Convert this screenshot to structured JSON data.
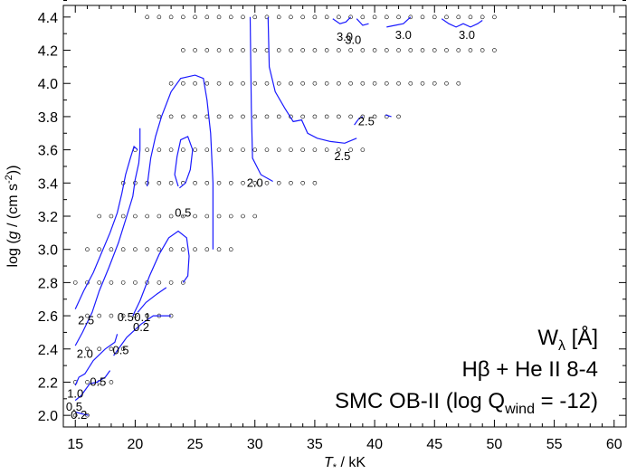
{
  "chart_data": {
    "type": "scatter",
    "xlabel_main": "T",
    "xlabel_sub": "*",
    "xlabel_unit": " / kK",
    "ylabel_pre": "log (",
    "ylabel_g": "g",
    "ylabel_post": " / (cm s",
    "ylabel_sup": "-2",
    "ylabel_end": "))",
    "xlim": [
      14,
      61
    ],
    "ylim": [
      1.93,
      4.47
    ],
    "xticks": [
      15,
      20,
      25,
      30,
      35,
      40,
      45,
      50,
      55,
      60
    ],
    "yticks": [
      2.0,
      2.2,
      2.4,
      2.6,
      2.8,
      3.0,
      3.2,
      3.4,
      3.6,
      3.8,
      4.0,
      4.2,
      4.4
    ],
    "ytick_labels": [
      "2.0",
      "2.2",
      "2.4",
      "2.6",
      "2.8",
      "3.0",
      "3.2",
      "3.4",
      "3.6",
      "3.8",
      "4.0",
      "4.2",
      "4.4"
    ],
    "annotation": {
      "line1_main": "W",
      "line1_sub": "λ",
      "line1_unit": " [Å]",
      "line2": "Hβ + He II 8-4",
      "line3_pre": "SMC OB-II (log Q",
      "line3_sub": "wind",
      "line3_post": " = -12)"
    },
    "grid_rows": [
      {
        "logg": 4.4,
        "x": [
          21,
          22,
          23,
          24,
          25,
          26,
          27,
          28,
          29,
          30,
          31,
          32,
          33,
          34,
          35,
          36,
          37,
          38,
          39,
          40,
          41,
          42,
          43,
          44,
          45,
          46,
          47,
          48,
          49,
          50
        ]
      },
      {
        "logg": 4.2,
        "x": [
          24,
          25,
          26,
          27,
          28,
          29,
          30,
          31,
          32,
          33,
          34,
          35,
          36,
          37,
          38,
          39,
          40,
          41,
          42,
          43,
          44,
          45,
          46,
          47,
          48,
          49,
          50
        ]
      },
      {
        "logg": 4.0,
        "x": [
          23,
          24,
          25,
          26,
          27,
          28,
          29,
          30,
          31,
          32,
          33,
          34,
          35,
          36,
          37,
          38,
          39,
          40,
          41,
          42,
          43,
          44,
          45,
          46,
          47
        ]
      },
      {
        "logg": 3.8,
        "x": [
          22,
          23,
          24,
          25,
          26,
          27,
          28,
          29,
          30,
          31,
          32,
          33,
          34,
          35,
          36,
          37,
          38,
          39,
          40,
          41,
          42
        ]
      },
      {
        "logg": 3.6,
        "x": [
          20,
          21,
          22,
          23,
          24,
          25,
          26,
          27,
          28,
          29,
          30,
          31,
          32,
          33,
          34,
          35,
          36,
          37,
          38,
          39
        ]
      },
      {
        "logg": 3.4,
        "x": [
          19,
          20,
          21,
          22,
          23,
          24,
          25,
          26,
          27,
          28,
          29,
          30,
          31,
          32,
          33,
          34,
          35
        ]
      },
      {
        "logg": 3.2,
        "x": [
          17,
          18,
          19,
          20,
          21,
          22,
          23,
          24,
          25,
          26,
          27,
          28,
          29,
          30
        ]
      },
      {
        "logg": 3.0,
        "x": [
          16,
          17,
          18,
          19,
          20,
          21,
          22,
          23,
          24,
          25,
          26,
          27,
          28
        ]
      },
      {
        "logg": 2.8,
        "x": [
          15,
          16,
          17,
          18,
          19,
          20,
          21,
          22,
          23,
          24
        ]
      },
      {
        "logg": 2.6,
        "x": [
          16,
          17,
          18,
          19,
          20,
          21,
          22,
          23
        ]
      },
      {
        "logg": 2.4,
        "x": [
          16,
          17,
          18,
          19
        ]
      },
      {
        "logg": 2.2,
        "x": [
          15,
          16,
          17,
          18
        ]
      },
      {
        "logg": 2.0,
        "x": [
          15,
          16
        ]
      }
    ],
    "contours": [
      {
        "level": 0.2,
        "points": [
          [
            15.0,
            2.02
          ],
          [
            15.5,
            2.01
          ],
          [
            16.1,
            2.0
          ]
        ]
      },
      {
        "level": 0.5,
        "points": [
          [
            15.0,
            2.09
          ],
          [
            15.5,
            2.12
          ],
          [
            15.8,
            2.15
          ],
          [
            16.2,
            2.19
          ],
          [
            16.8,
            2.2
          ],
          [
            17.5,
            2.23
          ],
          [
            17.9,
            2.27
          ]
        ]
      },
      {
        "level": 1.0,
        "points": [
          [
            15.0,
            2.18
          ],
          [
            15.3,
            2.23
          ],
          [
            15.8,
            2.25
          ],
          [
            16.5,
            2.33
          ],
          [
            17.5,
            2.4
          ],
          [
            18.3,
            2.44
          ],
          [
            18.5,
            2.49
          ]
        ]
      },
      {
        "level": 0.5,
        "points": [
          [
            18.2,
            2.36
          ],
          [
            18.8,
            2.42
          ],
          [
            19.3,
            2.47
          ],
          [
            20.5,
            2.55
          ],
          [
            21.5,
            2.6
          ],
          [
            23.0,
            2.6
          ]
        ]
      },
      {
        "level": 0.2,
        "points": [
          [
            20.2,
            2.62
          ],
          [
            20.9,
            2.68
          ],
          [
            21.8,
            2.73
          ],
          [
            22.6,
            2.77
          ]
        ]
      },
      {
        "level": 2.0,
        "points": [
          [
            15.0,
            2.42
          ],
          [
            15.6,
            2.5
          ],
          [
            16.4,
            2.62
          ],
          [
            17.0,
            2.75
          ],
          [
            17.8,
            2.89
          ],
          [
            18.6,
            3.04
          ],
          [
            19.3,
            3.2
          ],
          [
            19.8,
            3.32
          ],
          [
            20.0,
            3.42
          ],
          [
            20.3,
            3.52
          ],
          [
            20.4,
            3.6
          ],
          [
            20.4,
            3.73
          ]
        ]
      },
      {
        "level": 2.5,
        "points": [
          [
            15.0,
            2.64
          ],
          [
            15.7,
            2.75
          ],
          [
            16.5,
            2.86
          ],
          [
            17.2,
            2.98
          ],
          [
            17.9,
            3.1
          ],
          [
            18.5,
            3.22
          ],
          [
            18.9,
            3.34
          ],
          [
            19.2,
            3.45
          ],
          [
            19.6,
            3.55
          ],
          [
            19.9,
            3.62
          ],
          [
            20.2,
            3.6
          ]
        ]
      },
      {
        "level": 0.1,
        "points": [
          [
            19.8,
            2.6
          ],
          [
            20.4,
            2.69
          ],
          [
            21.2,
            2.84
          ],
          [
            22.0,
            2.97
          ],
          [
            22.8,
            3.07
          ],
          [
            23.6,
            3.11
          ],
          [
            24.3,
            3.07
          ],
          [
            24.5,
            2.96
          ],
          [
            24.4,
            2.84
          ],
          [
            24.0,
            2.8
          ]
        ]
      },
      {
        "level": 0.5,
        "points": [
          [
            23.6,
            3.38
          ],
          [
            23.3,
            3.45
          ],
          [
            23.5,
            3.56
          ],
          [
            23.8,
            3.66
          ],
          [
            24.4,
            3.68
          ],
          [
            24.8,
            3.6
          ],
          [
            24.6,
            3.48
          ],
          [
            24.2,
            3.4
          ],
          [
            23.7,
            3.37
          ]
        ]
      },
      {
        "level": 2.0,
        "points": [
          [
            21.0,
            3.38
          ],
          [
            21.3,
            3.55
          ],
          [
            21.7,
            3.68
          ],
          [
            22.2,
            3.8
          ],
          [
            23.0,
            3.95
          ],
          [
            23.8,
            4.03
          ],
          [
            25.0,
            4.05
          ],
          [
            25.7,
            4.03
          ],
          [
            26.0,
            3.9
          ],
          [
            26.3,
            3.7
          ],
          [
            26.5,
            3.4
          ],
          [
            26.5,
            3.0
          ]
        ]
      },
      {
        "level": 2.0,
        "points": [
          [
            29.6,
            4.4
          ],
          [
            29.7,
            3.85
          ],
          [
            29.8,
            3.55
          ],
          [
            30.5,
            3.45
          ],
          [
            31.5,
            3.41
          ]
        ]
      },
      {
        "level": 2.5,
        "points": [
          [
            31.1,
            4.4
          ],
          [
            31.2,
            4.1
          ],
          [
            31.7,
            3.95
          ],
          [
            32.5,
            3.85
          ],
          [
            33.2,
            3.77
          ],
          [
            33.9,
            3.78
          ],
          [
            34.4,
            3.7
          ],
          [
            35.2,
            3.67
          ],
          [
            36.3,
            3.65
          ],
          [
            37.5,
            3.64
          ],
          [
            38.5,
            3.67
          ]
        ]
      },
      {
        "level": 2.5,
        "points": [
          [
            38.3,
            3.75
          ],
          [
            38.7,
            3.79
          ],
          [
            39.0,
            3.8
          ]
        ]
      },
      {
        "level": 2.5,
        "points": [
          [
            40.9,
            3.81
          ],
          [
            41.4,
            3.8
          ]
        ]
      },
      {
        "level": 3.0,
        "points": [
          [
            36.5,
            4.39
          ],
          [
            37.1,
            4.36
          ],
          [
            37.6,
            4.37
          ],
          [
            38.0,
            4.4
          ]
        ]
      },
      {
        "level": 3.0,
        "points": [
          [
            38.5,
            4.39
          ],
          [
            39.0,
            4.35
          ],
          [
            39.5,
            4.36
          ]
        ]
      },
      {
        "level": 3.0,
        "points": [
          [
            41.0,
            4.34
          ],
          [
            41.7,
            4.35
          ],
          [
            42.4,
            4.36
          ],
          [
            43.0,
            4.4
          ]
        ]
      },
      {
        "level": 3.0,
        "points": [
          [
            45.6,
            4.39
          ],
          [
            46.2,
            4.36
          ],
          [
            46.8,
            4.34
          ],
          [
            47.4,
            4.36
          ],
          [
            48.0,
            4.34
          ],
          [
            48.6,
            4.36
          ],
          [
            49.0,
            4.38
          ]
        ]
      }
    ],
    "contour_labels": [
      {
        "text": "2.5",
        "x": 15.9,
        "y": 2.57
      },
      {
        "text": "2.0",
        "x": 15.8,
        "y": 2.37
      },
      {
        "text": "1.0",
        "x": 15.0,
        "y": 2.13
      },
      {
        "text": "0.5",
        "x": 14.9,
        "y": 2.05
      },
      {
        "text": "0.2",
        "x": 15.3,
        "y": 2.0
      },
      {
        "text": "0.5",
        "x": 16.9,
        "y": 2.2
      },
      {
        "text": "0.5",
        "x": 18.8,
        "y": 2.39
      },
      {
        "text": "0.5",
        "x": 19.2,
        "y": 2.59
      },
      {
        "text": "0.1",
        "x": 20.6,
        "y": 2.59
      },
      {
        "text": "0.2",
        "x": 20.5,
        "y": 2.53
      },
      {
        "text": "0.5",
        "x": 24.0,
        "y": 3.22
      },
      {
        "text": "2.0",
        "x": 30.0,
        "y": 3.4
      },
      {
        "text": "2.5",
        "x": 37.3,
        "y": 3.56
      },
      {
        "text": "2.5",
        "x": 39.3,
        "y": 3.77
      },
      {
        "text": "3.0",
        "x": 37.5,
        "y": 4.28
      },
      {
        "text": "3.0",
        "x": 38.2,
        "y": 4.26
      },
      {
        "text": "3.0",
        "x": 42.4,
        "y": 4.29
      },
      {
        "text": "3.0",
        "x": 47.7,
        "y": 4.29
      }
    ]
  }
}
